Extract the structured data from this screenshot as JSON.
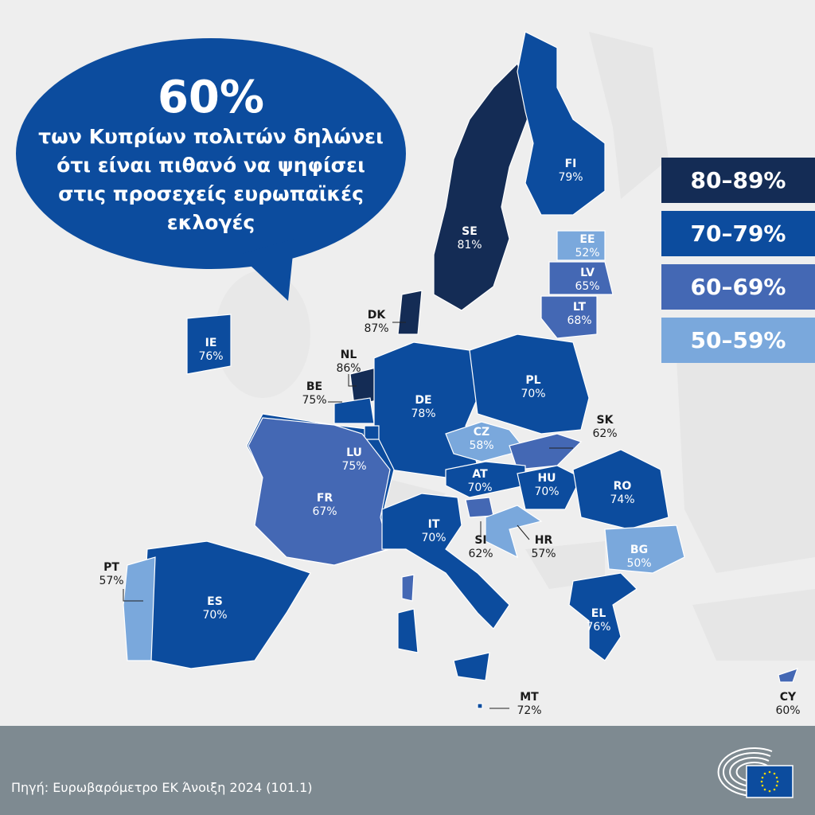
{
  "headline": {
    "percent": "60%",
    "text": "των Κυπρίων πολιτών δηλώνει ότι είναι πιθανό να ψηφίσει στις προσεχείς ευρωπαϊκές εκλογές"
  },
  "legend": [
    {
      "label": "80–89%",
      "color": "#142c55"
    },
    {
      "label": "70–79%",
      "color": "#0c4c9e"
    },
    {
      "label": "60–69%",
      "color": "#4468b4"
    },
    {
      "label": "50–59%",
      "color": "#7aa8dc"
    }
  ],
  "countries": [
    {
      "code": "FI",
      "value": "79%"
    },
    {
      "code": "SE",
      "value": "81%"
    },
    {
      "code": "EE",
      "value": "52%"
    },
    {
      "code": "LV",
      "value": "65%"
    },
    {
      "code": "LT",
      "value": "68%"
    },
    {
      "code": "DK",
      "value": "87%"
    },
    {
      "code": "IE",
      "value": "76%"
    },
    {
      "code": "NL",
      "value": "86%"
    },
    {
      "code": "BE",
      "value": "75%"
    },
    {
      "code": "DE",
      "value": "78%"
    },
    {
      "code": "PL",
      "value": "70%"
    },
    {
      "code": "CZ",
      "value": "58%"
    },
    {
      "code": "SK",
      "value": "62%"
    },
    {
      "code": "LU",
      "value": "75%"
    },
    {
      "code": "FR",
      "value": "67%"
    },
    {
      "code": "AT",
      "value": "70%"
    },
    {
      "code": "HU",
      "value": "70%"
    },
    {
      "code": "RO",
      "value": "74%"
    },
    {
      "code": "IT",
      "value": "70%"
    },
    {
      "code": "SI",
      "value": "62%"
    },
    {
      "code": "HR",
      "value": "57%"
    },
    {
      "code": "BG",
      "value": "50%"
    },
    {
      "code": "PT",
      "value": "57%"
    },
    {
      "code": "ES",
      "value": "70%"
    },
    {
      "code": "EL",
      "value": "76%"
    },
    {
      "code": "MT",
      "value": "72%"
    },
    {
      "code": "CY",
      "value": "60%"
    }
  ],
  "footer": {
    "source": "Πηγή: Ευρωβαρόμετρο ΕΚ Άνοιξη 2024 (101.1)",
    "logo": "European Parliament"
  }
}
